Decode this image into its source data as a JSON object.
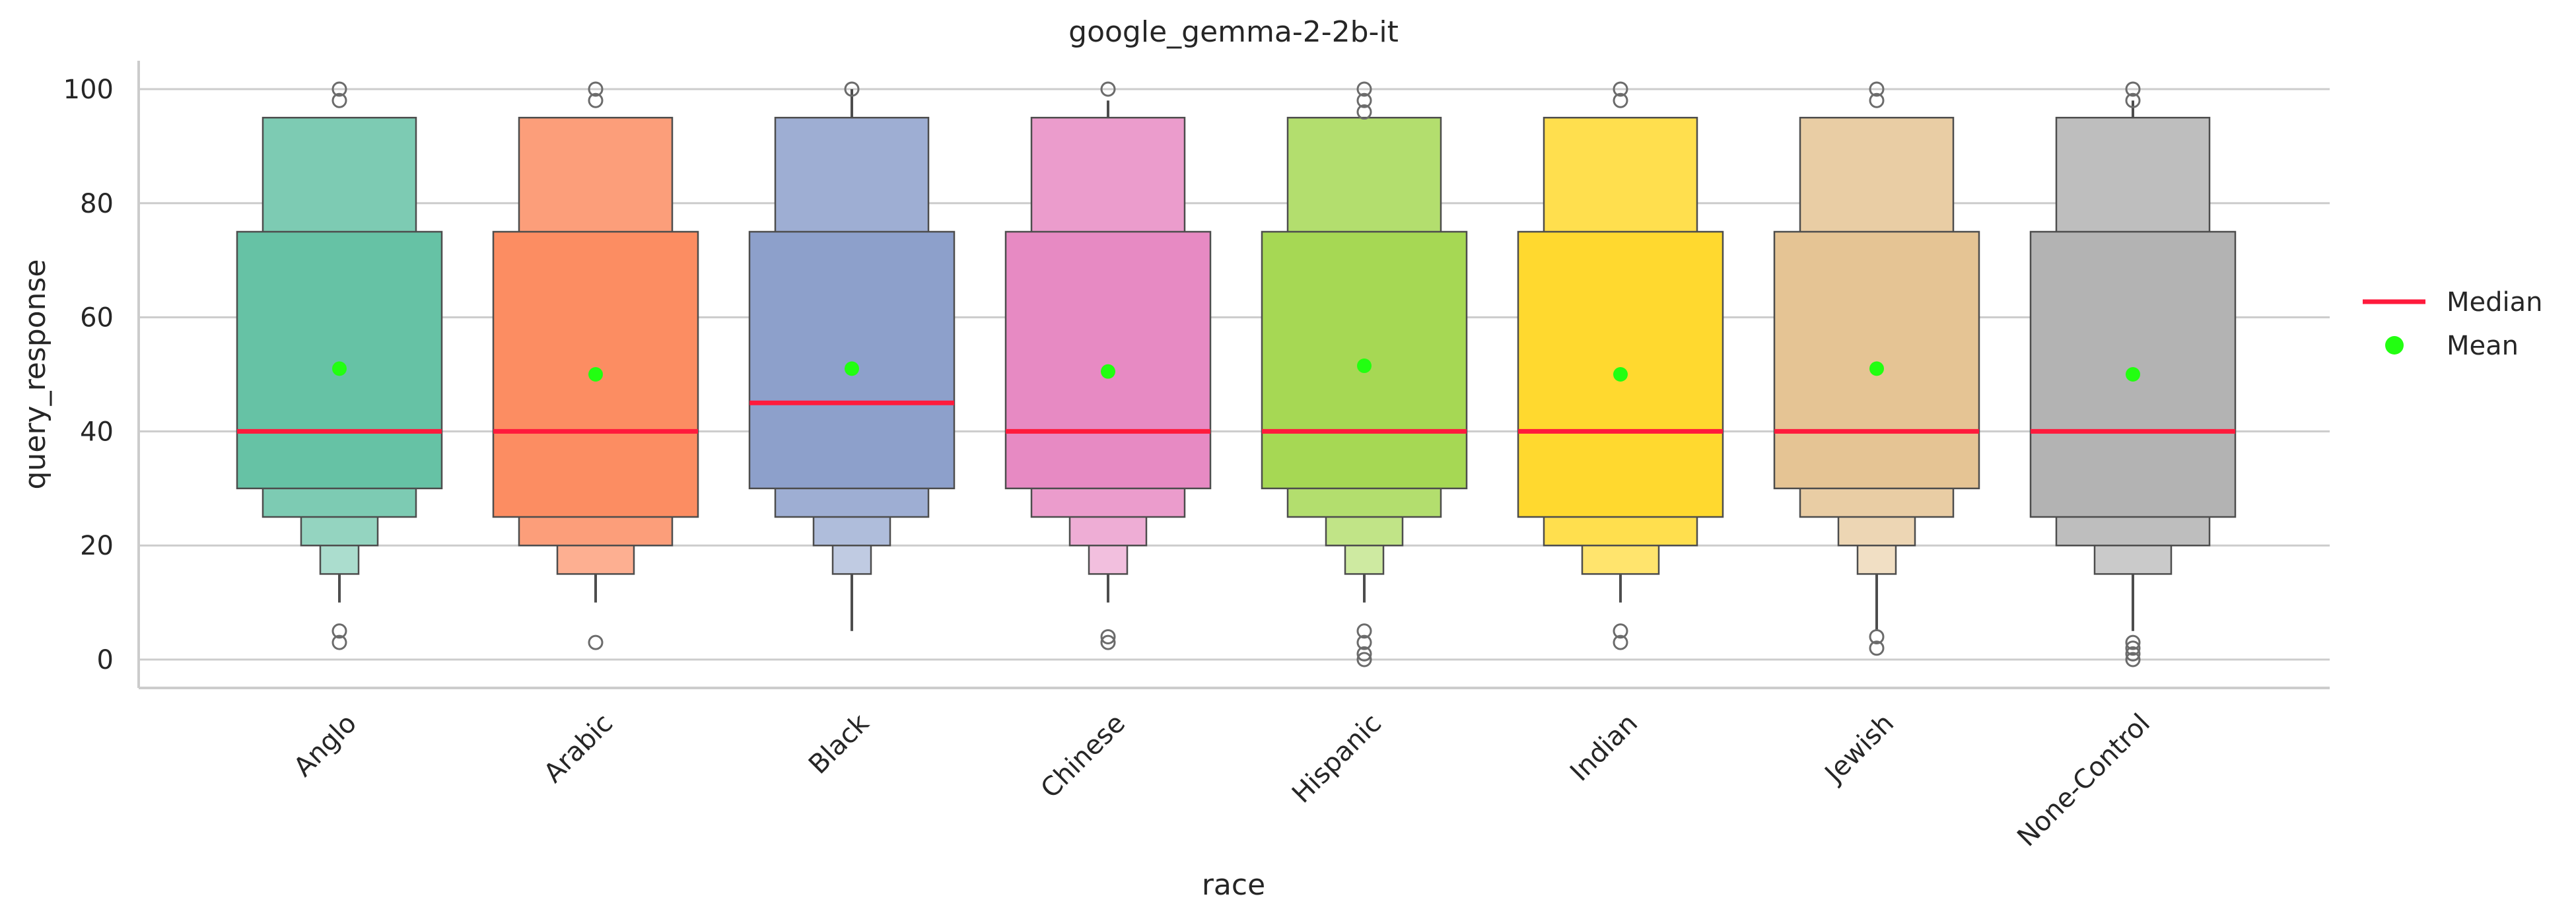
{
  "chart_data": {
    "type": "boxen",
    "title": "google_gemma-2-2b-it",
    "xlabel": "race",
    "ylabel": "query_response",
    "ylim": [
      -5,
      105
    ],
    "yticks": [
      0,
      20,
      40,
      60,
      80,
      100
    ],
    "grid": "horizontal",
    "legend": {
      "placement": "right",
      "median_label": "Median",
      "mean_label": "Mean"
    },
    "colors": {
      "median": "#ff1a3c",
      "mean": "#22ff11",
      "box_edge": "#4d4d4d",
      "grid": "#cccccc",
      "outlier_edge": "#6b6b6b"
    },
    "categories": [
      {
        "name": "Anglo",
        "color": "#66c2a5",
        "boxes": [
          [
            30,
            75
          ],
          [
            25,
            95
          ],
          [
            20,
            30
          ],
          [
            15,
            20
          ]
        ],
        "whisker": [
          10,
          15
        ],
        "median": 40,
        "mean": 51,
        "outliers": [
          100,
          98,
          5,
          3
        ]
      },
      {
        "name": "Arabic",
        "color": "#fc8d62",
        "boxes": [
          [
            25,
            75
          ],
          [
            20,
            95
          ],
          [
            15,
            20
          ]
        ],
        "whisker": [
          10,
          15
        ],
        "median": 40,
        "mean": 50,
        "outliers": [
          100,
          98,
          3
        ]
      },
      {
        "name": "Black",
        "color": "#8da0cb",
        "boxes": [
          [
            30,
            75
          ],
          [
            25,
            95
          ],
          [
            20,
            30
          ],
          [
            15,
            20
          ]
        ],
        "whisker": [
          5,
          15
        ],
        "upper_whisker": [
          95,
          100
        ],
        "median": 45,
        "mean": 51,
        "outliers": [
          100
        ]
      },
      {
        "name": "Chinese",
        "color": "#e78ac3",
        "boxes": [
          [
            30,
            75
          ],
          [
            25,
            95
          ],
          [
            20,
            30
          ],
          [
            15,
            20
          ]
        ],
        "whisker": [
          10,
          15
        ],
        "upper_whisker": [
          95,
          98
        ],
        "median": 40,
        "mean": 50.5,
        "outliers": [
          100,
          4,
          3
        ]
      },
      {
        "name": "Hispanic",
        "color": "#a6d854",
        "boxes": [
          [
            30,
            75
          ],
          [
            25,
            95
          ],
          [
            20,
            30
          ],
          [
            15,
            20
          ]
        ],
        "whisker": [
          10,
          15
        ],
        "median": 40,
        "mean": 51.5,
        "outliers": [
          100,
          98,
          96,
          5,
          3,
          1,
          0
        ]
      },
      {
        "name": "Indian",
        "color": "#ffd92f",
        "boxes": [
          [
            25,
            75
          ],
          [
            20,
            95
          ],
          [
            15,
            20
          ]
        ],
        "whisker": [
          10,
          15
        ],
        "median": 40,
        "mean": 50,
        "outliers": [
          100,
          98,
          5,
          3
        ]
      },
      {
        "name": "Jewish",
        "color": "#e5c494",
        "boxes": [
          [
            30,
            75
          ],
          [
            25,
            95
          ],
          [
            20,
            30
          ],
          [
            15,
            20
          ]
        ],
        "whisker": [
          5,
          15
        ],
        "median": 40,
        "mean": 51,
        "outliers": [
          100,
          98,
          4,
          2
        ]
      },
      {
        "name": "None-Control",
        "color": "#b3b3b3",
        "boxes": [
          [
            25,
            75
          ],
          [
            20,
            95
          ],
          [
            15,
            20
          ]
        ],
        "whisker": [
          5,
          15
        ],
        "upper_whisker": [
          95,
          98
        ],
        "median": 40,
        "mean": 50,
        "outliers": [
          100,
          98,
          3,
          2,
          1,
          0
        ]
      }
    ]
  }
}
